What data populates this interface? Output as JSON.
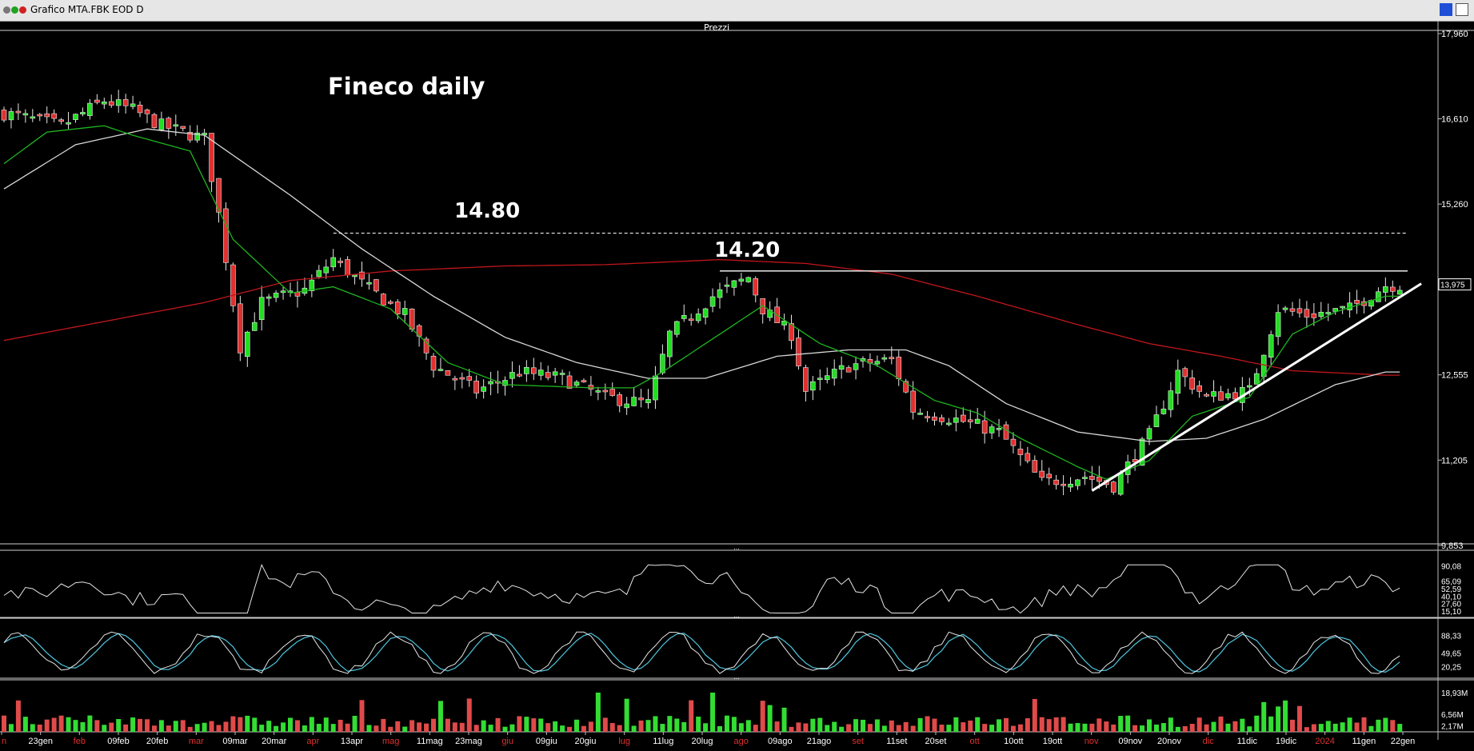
{
  "window": {
    "title": "Grafico MTA.FBK EOD D"
  },
  "panes": {
    "price_title": "Prezzi",
    "separator": "..."
  },
  "colors": {
    "up": "#22dd22",
    "down": "#e03030",
    "ma_fast": "#1fb41f",
    "ma_mid": "#d8d8d8",
    "ma_slow": "#c0171c",
    "volume_up": "#33dd33",
    "volume_down": "#e04a4a",
    "stoch_k": "#e6e6e6",
    "stoch_d": "#4fc7e0"
  },
  "annotations": {
    "chart_title": "Fineco daily",
    "level_high": "14.80",
    "level_mid": "14.20"
  },
  "chart_data": {
    "type": "candlestick",
    "symbol": "MTA.FBK",
    "price_axis": {
      "ticks": [
        "17,960",
        "16,610",
        "15,260",
        "13,975",
        "12,555",
        "11,205",
        "9,853"
      ],
      "last_price": "13,975",
      "ylim": [
        9.853,
        17.96
      ]
    },
    "x_labels": [
      "n",
      "23gen",
      "feb",
      "09feb",
      "20feb",
      "mar",
      "09mar",
      "20mar",
      "apr",
      "13apr",
      "mag",
      "11mag",
      "23mag",
      "giu",
      "09giu",
      "20giu",
      "lug",
      "11lug",
      "20lug",
      "ago",
      "09ago",
      "21ago",
      "set",
      "11set",
      "20set",
      "ott",
      "10ott",
      "19ott",
      "nov",
      "09nov",
      "20nov",
      "dic",
      "11dic",
      "19dic",
      "2024",
      "11gen",
      "22gen"
    ],
    "x_label_kind": [
      "month",
      "day",
      "month",
      "day",
      "day",
      "month",
      "day",
      "day",
      "month",
      "day",
      "month",
      "day",
      "day",
      "month",
      "day",
      "day",
      "month",
      "day",
      "day",
      "month",
      "day",
      "day",
      "month",
      "day",
      "day",
      "month",
      "day",
      "day",
      "month",
      "day",
      "day",
      "month",
      "day",
      "day",
      "month",
      "day",
      "day"
    ],
    "levels": [
      {
        "label": "14.80",
        "value": 14.8
      },
      {
        "label": "14.20",
        "value": 14.2
      }
    ],
    "close_anchors": [
      [
        0,
        16.7
      ],
      [
        8,
        16.5
      ],
      [
        14,
        16.9
      ],
      [
        18,
        16.75
      ],
      [
        22,
        16.5
      ],
      [
        28,
        16.3
      ],
      [
        30,
        15.1
      ],
      [
        33,
        13.0
      ],
      [
        36,
        13.7
      ],
      [
        42,
        13.9
      ],
      [
        46,
        14.4
      ],
      [
        50,
        14.0
      ],
      [
        56,
        13.5
      ],
      [
        60,
        12.7
      ],
      [
        66,
        12.3
      ],
      [
        72,
        12.6
      ],
      [
        78,
        12.5
      ],
      [
        84,
        12.2
      ],
      [
        90,
        12.1
      ],
      [
        93,
        13.2
      ],
      [
        99,
        13.8
      ],
      [
        104,
        14.1
      ],
      [
        106,
        13.6
      ],
      [
        110,
        13.2
      ],
      [
        112,
        12.3
      ],
      [
        118,
        12.7
      ],
      [
        124,
        12.8
      ],
      [
        127,
        12.0
      ],
      [
        133,
        11.85
      ],
      [
        139,
        11.65
      ],
      [
        145,
        10.85
      ],
      [
        151,
        10.95
      ],
      [
        155,
        10.8
      ],
      [
        160,
        11.6
      ],
      [
        164,
        12.6
      ],
      [
        168,
        12.2
      ],
      [
        174,
        12.3
      ],
      [
        178,
        13.6
      ],
      [
        182,
        13.5
      ],
      [
        188,
        13.6
      ],
      [
        193,
        13.975
      ]
    ],
    "ma_fast_anchors": [
      [
        0,
        15.9
      ],
      [
        6,
        16.4
      ],
      [
        14,
        16.5
      ],
      [
        18,
        16.35
      ],
      [
        26,
        16.1
      ],
      [
        32,
        14.7
      ],
      [
        40,
        13.85
      ],
      [
        46,
        13.95
      ],
      [
        54,
        13.6
      ],
      [
        62,
        12.75
      ],
      [
        70,
        12.4
      ],
      [
        82,
        12.35
      ],
      [
        88,
        12.35
      ],
      [
        92,
        12.6
      ],
      [
        100,
        13.2
      ],
      [
        106,
        13.65
      ],
      [
        114,
        13.05
      ],
      [
        122,
        12.7
      ],
      [
        130,
        12.15
      ],
      [
        136,
        11.95
      ],
      [
        142,
        11.55
      ],
      [
        150,
        11.1
      ],
      [
        154,
        10.9
      ],
      [
        160,
        11.2
      ],
      [
        166,
        11.9
      ],
      [
        174,
        12.2
      ],
      [
        180,
        13.2
      ],
      [
        186,
        13.55
      ],
      [
        193,
        13.8
      ]
    ],
    "ma_mid_anchors": [
      [
        0,
        15.5
      ],
      [
        10,
        16.2
      ],
      [
        20,
        16.45
      ],
      [
        28,
        16.35
      ],
      [
        40,
        15.4
      ],
      [
        50,
        14.55
      ],
      [
        60,
        13.8
      ],
      [
        70,
        13.15
      ],
      [
        80,
        12.75
      ],
      [
        90,
        12.5
      ],
      [
        98,
        12.5
      ],
      [
        108,
        12.85
      ],
      [
        118,
        12.95
      ],
      [
        126,
        12.95
      ],
      [
        132,
        12.7
      ],
      [
        140,
        12.1
      ],
      [
        150,
        11.65
      ],
      [
        160,
        11.5
      ],
      [
        168,
        11.55
      ],
      [
        176,
        11.85
      ],
      [
        186,
        12.4
      ],
      [
        193,
        12.6
      ]
    ],
    "ma_slow_anchors": [
      [
        0,
        13.1
      ],
      [
        14,
        13.4
      ],
      [
        28,
        13.7
      ],
      [
        40,
        14.05
      ],
      [
        54,
        14.2
      ],
      [
        70,
        14.28
      ],
      [
        84,
        14.3
      ],
      [
        100,
        14.38
      ],
      [
        112,
        14.32
      ],
      [
        124,
        14.15
      ],
      [
        136,
        13.8
      ],
      [
        150,
        13.35
      ],
      [
        160,
        13.05
      ],
      [
        170,
        12.85
      ],
      [
        180,
        12.62
      ],
      [
        193,
        12.55
      ]
    ],
    "trendline": {
      "from": [
        152,
        10.72
      ],
      "to": [
        198,
        14.0
      ]
    },
    "volume_axis": {
      "ticks": [
        "18,93M",
        "6,56M",
        "2,17M"
      ]
    },
    "rsi_axis": {
      "ticks": [
        "90,08",
        "65,09",
        "52,59",
        "40,10",
        "27,60",
        "15,10"
      ]
    },
    "stoch_axis": {
      "ticks": [
        "88,33",
        "49,65",
        "20,25"
      ]
    }
  }
}
